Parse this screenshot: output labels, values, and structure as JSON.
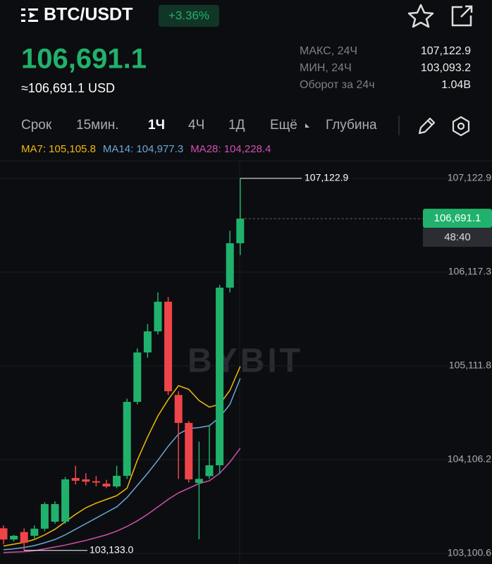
{
  "header": {
    "symbol": "BTC/USDT",
    "change": "+3.36%",
    "price": "106,691.1",
    "usd_price": "≈106,691.1 USD",
    "stats": [
      {
        "label": "МАКС, 24Ч",
        "value": "107,122.9"
      },
      {
        "label": "МИН, 24Ч",
        "value": "103,093.2"
      },
      {
        "label": "Оборот за 24ч",
        "value": "1.04B"
      }
    ]
  },
  "tabs": [
    "Срок",
    "15мин.",
    "1Ч",
    "4Ч",
    "1Д",
    "Ещё",
    "Глубина"
  ],
  "chart_data": {
    "type": "candlestick",
    "watermark": "BYBIT",
    "ylim": [
      102987.3,
      107311.9
    ],
    "yticks": [
      {
        "value": 107122.9,
        "label": "107,122.9"
      },
      {
        "value": 106117.3,
        "label": "106,117.3"
      },
      {
        "value": 105111.8,
        "label": "105,111.8"
      },
      {
        "value": 104106.2,
        "label": "104,106.2"
      },
      {
        "value": 103100.6,
        "label": "103,100.6"
      }
    ],
    "grid": true,
    "up_color": "#20b26c",
    "down_color": "#ef454a",
    "open": [
      103370,
      103250,
      103330,
      103290,
      103366,
      103441,
      103441,
      103910,
      103895,
      103875,
      103849,
      103819,
      103933,
      104726,
      105256,
      105482,
      105800,
      104800,
      104500,
      103857,
      103930,
      104046,
      105951,
      106427
    ],
    "high": [
      103400,
      103300,
      103370,
      103400,
      103650,
      103660,
      103920,
      104040,
      103960,
      103930,
      103890,
      104040,
      104760,
      105300,
      105560,
      105900,
      105850,
      104840,
      104520,
      104300,
      104480,
      105980,
      106560,
      107122.9
    ],
    "low": [
      103200,
      103230,
      103133.0,
      103260,
      103340,
      103420,
      103420,
      103840,
      103830,
      103820,
      103800,
      103800,
      103900,
      104700,
      105200,
      105450,
      104800,
      103900,
      103860,
      103252,
      103900,
      103950,
      105900,
      106300
    ],
    "close": [
      103250,
      103290,
      103215,
      103366,
      103630,
      103630,
      103895,
      103880,
      103870,
      103860,
      103819,
      103933,
      104726,
      105256,
      105482,
      105800,
      104840,
      104500,
      103895,
      103900,
      104046,
      105951,
      106427,
      106691.1
    ],
    "series": [
      {
        "name": "MA7",
        "color": "#f0b90b",
        "legend_label": "MA7: 105,105.8",
        "values": [
          103180,
          103200,
          103220,
          103250,
          103300,
          103360,
          103440,
          103520,
          103590,
          103640,
          103680,
          103720,
          103800,
          104100,
          104350,
          104575,
          104750,
          104900,
          104860,
          104740,
          104670,
          104700,
          104850,
          105105.8
        ]
      },
      {
        "name": "MA14",
        "color": "#6aa6d6",
        "legend_label": "MA14: 104,977.3",
        "values": [
          103140,
          103150,
          103165,
          103185,
          103215,
          103250,
          103300,
          103360,
          103420,
          103480,
          103540,
          103600,
          103700,
          103830,
          103960,
          104100,
          104250,
          104380,
          104440,
          104450,
          104470,
          104560,
          104700,
          104977.3
        ]
      },
      {
        "name": "MA28",
        "color": "#d04fae",
        "legend_label": "MA28: 104,228.4",
        "values": [
          103110,
          103115,
          103120,
          103130,
          103150,
          103170,
          103190,
          103215,
          103240,
          103270,
          103300,
          103340,
          103390,
          103450,
          103520,
          103600,
          103680,
          103750,
          103800,
          103850,
          103880,
          103960,
          104080,
          104228.4
        ]
      }
    ],
    "high_label": "107,122.9",
    "low_label": "103,133.0",
    "last_price": 106691.1,
    "last_price_label": "106,691.1",
    "countdown": "48:40"
  }
}
